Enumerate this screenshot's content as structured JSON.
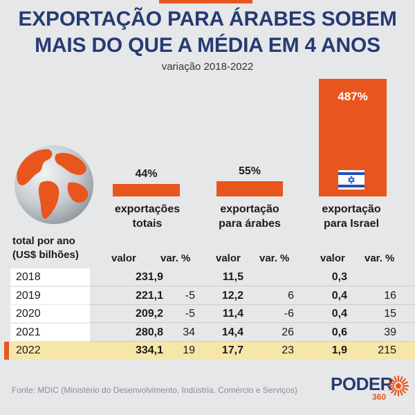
{
  "header": {
    "title_line1": "EXPORTAÇÃO PARA ÁRABES SOBEM",
    "title_line2": "MAIS DO QUE A MÉDIA EM 4 ANOS",
    "subtitle": "variação 2018-2022"
  },
  "colors": {
    "accent": "#e8561e",
    "title": "#263b73",
    "highlight": "#f6e7a9",
    "israel_blue": "#1f4fc0"
  },
  "icons": {
    "globe": "globe-icon",
    "flag": "israel-flag-icon",
    "logo": "poder360-sun-icon"
  },
  "chart_data": {
    "type": "bar",
    "title": "EXPORTAÇÃO PARA ÁRABES SOBEM MAIS DO QUE A MÉDIA EM 4 ANOS",
    "subtitle": "variação 2018-2022",
    "categories": [
      "exportações totais",
      "exportação para árabes",
      "exportação para Israel"
    ],
    "values": [
      44,
      55,
      487
    ],
    "value_labels": [
      "44%",
      "55%",
      "487%"
    ],
    "category_lines": [
      [
        "exportações",
        "totais"
      ],
      [
        "exportação",
        "para árabes"
      ],
      [
        "exportação",
        "para Israel"
      ]
    ],
    "unit": "%",
    "ylim": [
      0,
      487
    ]
  },
  "table": {
    "left_header_line1": "total por ano",
    "left_header_line2": "(US$ bilhões)",
    "col_value": "valor",
    "col_var": "var. %",
    "highlight_year": "2022",
    "rows": [
      {
        "year": "2018",
        "total": "231,9",
        "total_var": "",
        "arabes": "11,5",
        "arabes_var": "",
        "israel": "0,3",
        "israel_var": ""
      },
      {
        "year": "2019",
        "total": "221,1",
        "total_var": "-5",
        "arabes": "12,2",
        "arabes_var": "6",
        "israel": "0,4",
        "israel_var": "16"
      },
      {
        "year": "2020",
        "total": "209,2",
        "total_var": "-5",
        "arabes": "11,4",
        "arabes_var": "-6",
        "israel": "0,4",
        "israel_var": "15"
      },
      {
        "year": "2021",
        "total": "280,8",
        "total_var": "34",
        "arabes": "14,4",
        "arabes_var": "26",
        "israel": "0,6",
        "israel_var": "39"
      },
      {
        "year": "2022",
        "total": "334,1",
        "total_var": "19",
        "arabes": "17,7",
        "arabes_var": "23",
        "israel": "1,9",
        "israel_var": "215"
      }
    ]
  },
  "footer": {
    "source": "Fonte: MDIC (Ministério do Desenvolvimento, Indústria, Comércio e Serviços)",
    "logo_text": "PODER",
    "logo_sub": "360"
  }
}
